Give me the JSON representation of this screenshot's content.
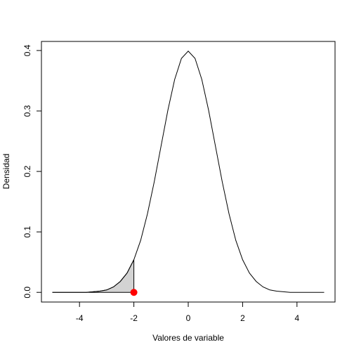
{
  "chart_data": {
    "type": "line",
    "xlabel": "Valores de variable",
    "ylabel": "Densidad",
    "xlim": [
      -5.4,
      5.4
    ],
    "ylim": [
      -0.016,
      0.415
    ],
    "xticks": [
      -4,
      -2,
      0,
      2,
      4
    ],
    "yticks": [
      {
        "value": 0,
        "label": "0.0"
      },
      0.1,
      0.2,
      0.3,
      0.4
    ],
    "series": [
      {
        "color": "#000000",
        "x": [
          -5,
          -4.75,
          -4.5,
          -4.25,
          -4,
          -3.75,
          -3.5,
          -3.25,
          -3,
          -2.75,
          -2.5,
          -2.25,
          -2,
          -1.75,
          -1.5,
          -1.25,
          -1,
          -0.75,
          -0.5,
          -0.25,
          0,
          0.25,
          0.5,
          0.75,
          1,
          1.25,
          1.5,
          1.75,
          2,
          2.25,
          2.5,
          2.75,
          3,
          3.25,
          3.5,
          3.75,
          4,
          4.25,
          4.5,
          4.75,
          5
        ],
        "values": [
          0,
          0,
          0,
          0,
          0,
          0,
          0.001,
          0.002,
          0.004,
          0.009,
          0.018,
          0.032,
          0.054,
          0.086,
          0.13,
          0.183,
          0.242,
          0.301,
          0.352,
          0.387,
          0.399,
          0.387,
          0.352,
          0.301,
          0.242,
          0.183,
          0.13,
          0.086,
          0.054,
          0.032,
          0.018,
          0.009,
          0.004,
          0.002,
          0.001,
          0,
          0,
          0,
          0,
          0,
          0
        ]
      }
    ],
    "area": {
      "color": "#d3d3d3",
      "x": [
        -5,
        -4.75,
        -4.5,
        -4.25,
        -4,
        -3.75,
        -3.5,
        -3.25,
        -3,
        -2.75,
        -2.5,
        -2.25,
        -2
      ],
      "values": [
        0,
        0,
        0,
        0,
        0,
        0,
        0.001,
        0.002,
        0.004,
        0.009,
        0.018,
        0.032,
        0.054
      ]
    },
    "point": {
      "x": -2,
      "y": 0,
      "color": "#ff0000"
    }
  }
}
